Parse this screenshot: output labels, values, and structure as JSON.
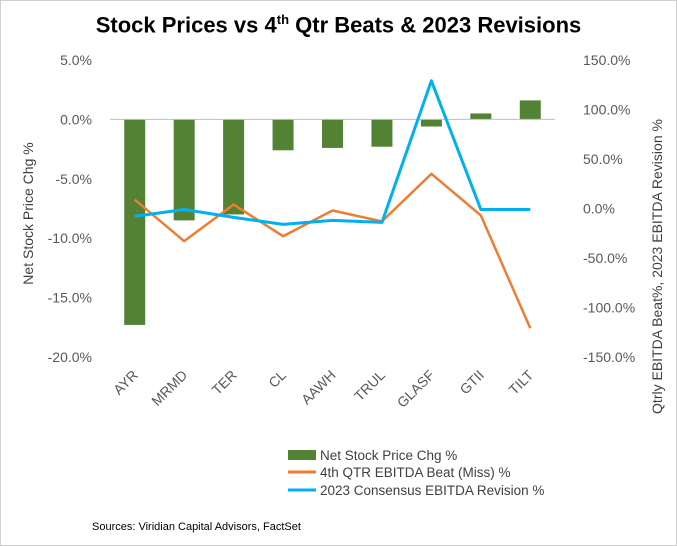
{
  "title": {
    "main_before": "Stock Prices vs 4",
    "superscript": "th",
    "main_after": " Qtr Beats & 2023 Revisions"
  },
  "source_note": "Sources: Viridian Capital Advisors, FactSet",
  "chart_data": {
    "type": "bar",
    "categories": [
      "AYR",
      "MRMD",
      "TER",
      "CL",
      "AAWH",
      "TRUL",
      "GLASF",
      "GTII",
      "TILT"
    ],
    "ylabel": "Net Stock Price Chg %",
    "ylabel_right": "Qtrly EBITDA Beat%,  2023 EBITDA Revision %",
    "y_left": {
      "lim": [
        -20,
        5
      ],
      "ticks": [
        5,
        0,
        -5,
        -10,
        -15,
        -20
      ],
      "tick_labels": [
        "5.0%",
        "0.0%",
        "-5.0%",
        "-10.0%",
        "-15.0%",
        "-20.0%"
      ]
    },
    "y_right": {
      "lim": [
        -150,
        150
      ],
      "ticks": [
        150,
        100,
        50,
        0,
        -50,
        -100,
        -150
      ],
      "tick_labels": [
        "150.0%",
        "100.0%",
        "50.0%",
        "0.0%",
        "-50.0%",
        "-100.0%",
        "-150.0%"
      ]
    },
    "grid": false,
    "legend_position": "bottom",
    "series": [
      {
        "name": "Net Stock Price Chg %",
        "type": "bar",
        "axis": "left",
        "color": "#548235",
        "values": [
          -17.3,
          -8.5,
          -8.0,
          -2.6,
          -2.4,
          -2.3,
          -0.6,
          0.5,
          1.6
        ]
      },
      {
        "name": "4th QTR EBITDA Beat (Miss) %",
        "type": "line",
        "axis": "right",
        "color": "#ED7D31",
        "values": [
          9,
          -33,
          4,
          -28,
          -2,
          -13,
          35,
          -7,
          -121
        ]
      },
      {
        "name": "2023 Consensus EBITDA Revision %",
        "type": "line",
        "axis": "right",
        "color": "#00B0F0",
        "values": [
          -8,
          -1,
          -9,
          -16,
          -12,
          -14,
          129,
          -1,
          -1
        ]
      }
    ]
  }
}
